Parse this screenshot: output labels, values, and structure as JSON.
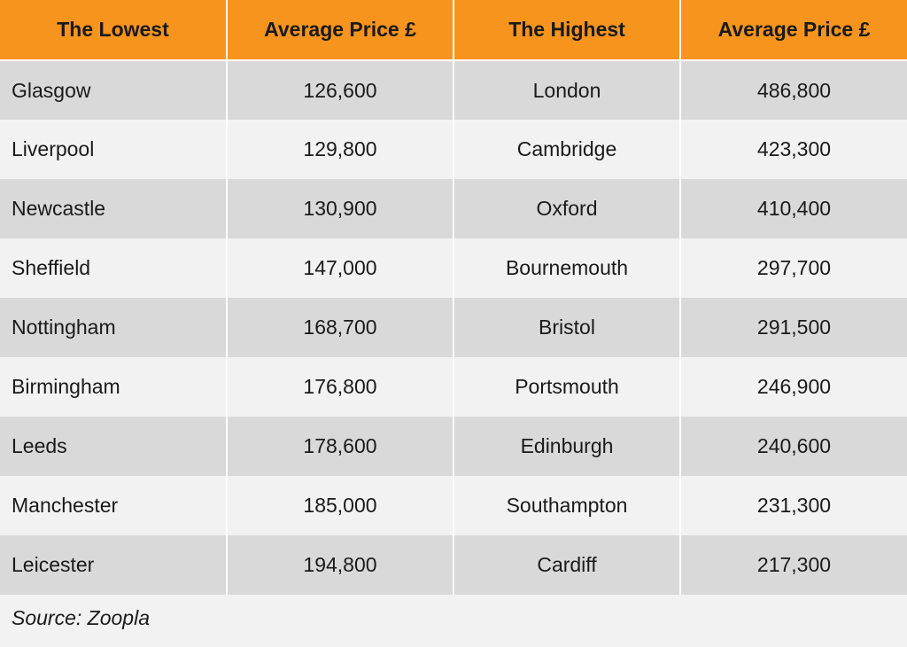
{
  "headers": {
    "lowest": "The Lowest",
    "lowest_price": "Average Price £",
    "highest": "The Highest",
    "highest_price": "Average Price £"
  },
  "rows": [
    {
      "low_city": "Glasgow",
      "low_price": "126,600",
      "high_city": "London",
      "high_price": "486,800"
    },
    {
      "low_city": "Liverpool",
      "low_price": "129,800",
      "high_city": "Cambridge",
      "high_price": "423,300"
    },
    {
      "low_city": "Newcastle",
      "low_price": "130,900",
      "high_city": "Oxford",
      "high_price": "410,400"
    },
    {
      "low_city": "Sheffield",
      "low_price": "147,000",
      "high_city": "Bournemouth",
      "high_price": "297,700"
    },
    {
      "low_city": "Nottingham",
      "low_price": "168,700",
      "high_city": "Bristol",
      "high_price": "291,500"
    },
    {
      "low_city": "Birmingham",
      "low_price": "176,800",
      "high_city": "Portsmouth",
      "high_price": "246,900"
    },
    {
      "low_city": "Leeds",
      "low_price": "178,600",
      "high_city": "Edinburgh",
      "high_price": "240,600"
    },
    {
      "low_city": "Manchester",
      "low_price": "185,000",
      "high_city": "Southampton",
      "high_price": "231,300"
    },
    {
      "low_city": "Leicester",
      "low_price": "194,800",
      "high_city": "Cardiff",
      "high_price": "217,300"
    }
  ],
  "source": "Source: Zoopla",
  "colors": {
    "header_bg": "#f7941d",
    "row_dark": "#d9d9d9",
    "row_light": "#f2f2f2"
  }
}
